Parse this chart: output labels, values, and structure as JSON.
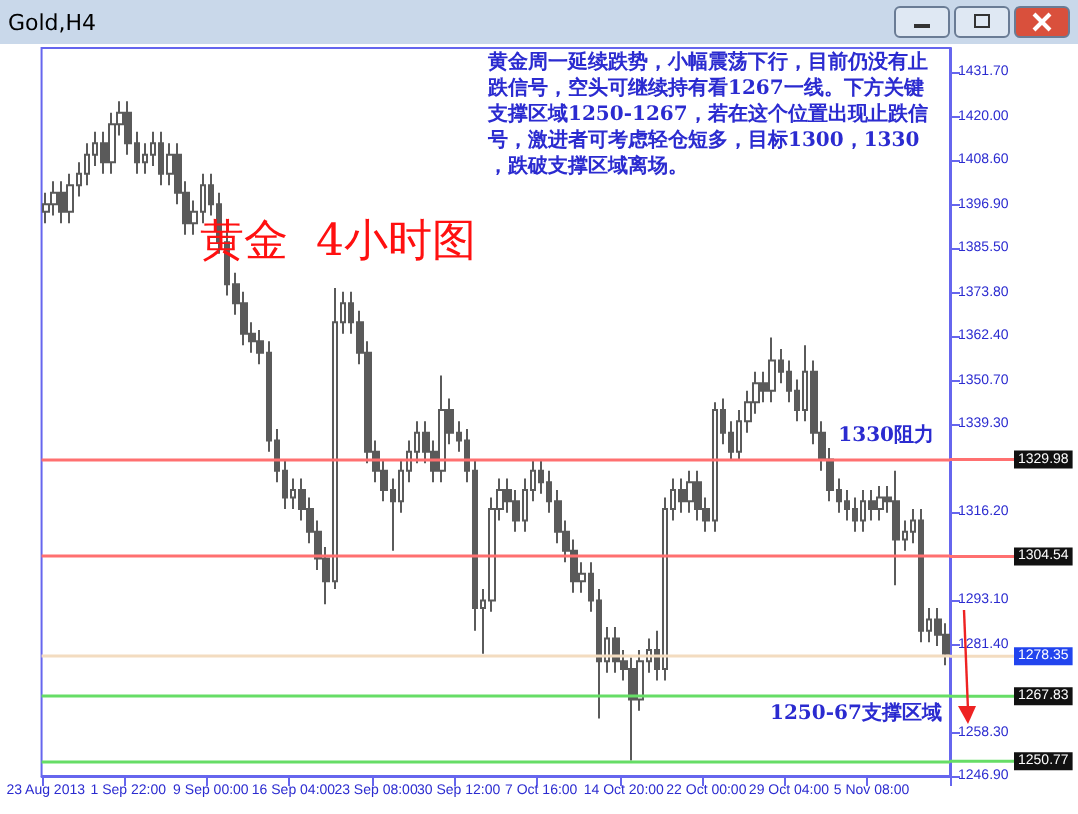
{
  "chart_data": {
    "type": "candlestick",
    "title": "Gold,H4",
    "color": "#5a5a5a",
    "annotations": [
      "黄金周一延续跌势，小幅震荡下行，目前仍没有止跌信号，空头可继续持有看1267一线。下方关键支撑区域1250-1267，若在这个位置出现止跌信号，激进者可考虑轻仓短多，目标1300，1330，跌破支撑区域离场。",
      "黄金  4小时图",
      "1250-67支撑区域",
      {
        "text": "1330阻力",
        "y": 1329.98
      }
    ],
    "categories": [
      "23 Aug 2013",
      null,
      null,
      null,
      null,
      null,
      null,
      null,
      null,
      null,
      "1 Sep 22:00",
      null,
      null,
      null,
      null,
      null,
      null,
      null,
      null,
      null,
      "9 Sep 00:00",
      null,
      null,
      null,
      null,
      null,
      null,
      null,
      null,
      null,
      "16 Sep 04:00",
      null,
      null,
      null,
      null,
      null,
      null,
      null,
      null,
      null,
      "23 Sep 08:00",
      null,
      null,
      null,
      null,
      null,
      null,
      null,
      null,
      null,
      "30 Sep 12:00",
      null,
      null,
      null,
      null,
      null,
      null,
      null,
      null,
      null,
      "7 Oct 16:00",
      null,
      null,
      null,
      null,
      null,
      null,
      null,
      null,
      null,
      "14 Oct 20:00",
      null,
      null,
      null,
      null,
      null,
      null,
      null,
      null,
      null,
      "22 Oct 00:00",
      null,
      null,
      null,
      null,
      null,
      null,
      null,
      null,
      null,
      "29 Oct 04:00",
      null,
      null,
      null,
      null,
      null,
      null,
      null,
      null,
      null,
      "5 Nov 08:00",
      null,
      null,
      null,
      null,
      null,
      null,
      null,
      null,
      null
    ],
    "ohlc": [
      [
        1395,
        1400,
        1392,
        1397
      ],
      [
        1397,
        1403,
        1394,
        1400
      ],
      [
        1400,
        1403,
        1392,
        1395
      ],
      [
        1395,
        1405,
        1392,
        1402
      ],
      [
        1402,
        1408,
        1399,
        1405
      ],
      [
        1405,
        1413,
        1402,
        1410
      ],
      [
        1410,
        1416,
        1407,
        1413
      ],
      [
        1413,
        1416,
        1405,
        1408
      ],
      [
        1408,
        1421,
        1405,
        1418
      ],
      [
        1418,
        1424,
        1415,
        1421
      ],
      [
        1421,
        1424,
        1410,
        1413
      ],
      [
        1413,
        1416,
        1405,
        1408
      ],
      [
        1408,
        1413,
        1405,
        1410
      ],
      [
        1410,
        1416,
        1407,
        1413
      ],
      [
        1413,
        1416,
        1402,
        1405
      ],
      [
        1405,
        1413,
        1402,
        1410
      ],
      [
        1410,
        1413,
        1397,
        1400
      ],
      [
        1400,
        1403,
        1389,
        1392
      ],
      [
        1392,
        1398,
        1389,
        1395
      ],
      [
        1395,
        1405,
        1392,
        1402
      ],
      [
        1402,
        1405,
        1394,
        1397
      ],
      [
        1397,
        1400,
        1384,
        1387
      ],
      [
        1387,
        1390,
        1373,
        1376
      ],
      [
        1376,
        1379,
        1368,
        1371
      ],
      [
        1371,
        1374,
        1360,
        1363
      ],
      [
        1363,
        1366,
        1358,
        1361
      ],
      [
        1361,
        1364,
        1355,
        1358
      ],
      [
        1358,
        1361,
        1332,
        1335
      ],
      [
        1335,
        1338,
        1324,
        1327
      ],
      [
        1327,
        1330,
        1317,
        1320
      ],
      [
        1320,
        1325,
        1317,
        1322
      ],
      [
        1322,
        1325,
        1314,
        1317
      ],
      [
        1317,
        1320,
        1308,
        1311
      ],
      [
        1311,
        1314,
        1301,
        1304
      ],
      [
        1304,
        1307,
        1292,
        1298
      ],
      [
        1298,
        1375,
        1296,
        1366
      ],
      [
        1366,
        1374,
        1363,
        1371
      ],
      [
        1371,
        1374,
        1363,
        1366
      ],
      [
        1366,
        1369,
        1355,
        1358
      ],
      [
        1358,
        1361,
        1329,
        1332
      ],
      [
        1332,
        1335,
        1324,
        1327
      ],
      [
        1327,
        1330,
        1319,
        1322
      ],
      [
        1322,
        1325,
        1306,
        1319
      ],
      [
        1319,
        1330,
        1316,
        1327
      ],
      [
        1327,
        1335,
        1324,
        1332
      ],
      [
        1332,
        1340,
        1329,
        1337
      ],
      [
        1337,
        1340,
        1329,
        1332
      ],
      [
        1332,
        1335,
        1324,
        1327
      ],
      [
        1327,
        1352,
        1324,
        1343
      ],
      [
        1343,
        1346,
        1334,
        1337
      ],
      [
        1337,
        1340,
        1332,
        1335
      ],
      [
        1335,
        1338,
        1324,
        1327
      ],
      [
        1327,
        1330,
        1285,
        1291
      ],
      [
        1291,
        1296,
        1279,
        1293
      ],
      [
        1293,
        1320,
        1290,
        1317
      ],
      [
        1317,
        1325,
        1314,
        1322
      ],
      [
        1322,
        1325,
        1316,
        1319
      ],
      [
        1319,
        1322,
        1311,
        1314
      ],
      [
        1314,
        1325,
        1311,
        1322
      ],
      [
        1322,
        1330,
        1319,
        1327
      ],
      [
        1327,
        1330,
        1321,
        1324
      ],
      [
        1324,
        1327,
        1316,
        1319
      ],
      [
        1319,
        1322,
        1308,
        1311
      ],
      [
        1311,
        1314,
        1303,
        1306
      ],
      [
        1306,
        1309,
        1295,
        1298
      ],
      [
        1298,
        1303,
        1295,
        1300
      ],
      [
        1300,
        1303,
        1290,
        1293
      ],
      [
        1293,
        1296,
        1262,
        1277
      ],
      [
        1277,
        1286,
        1274,
        1283
      ],
      [
        1283,
        1286,
        1274,
        1277
      ],
      [
        1277,
        1280,
        1272,
        1275
      ],
      [
        1275,
        1278,
        1251,
        1267
      ],
      [
        1267,
        1280,
        1264,
        1277
      ],
      [
        1277,
        1283,
        1274,
        1280
      ],
      [
        1280,
        1285,
        1272,
        1275
      ],
      [
        1275,
        1320,
        1272,
        1317
      ],
      [
        1317,
        1325,
        1314,
        1322
      ],
      [
        1322,
        1325,
        1316,
        1319
      ],
      [
        1319,
        1327,
        1316,
        1324
      ],
      [
        1324,
        1327,
        1314,
        1317
      ],
      [
        1317,
        1320,
        1311,
        1314
      ],
      [
        1314,
        1345,
        1311,
        1343
      ],
      [
        1343,
        1346,
        1334,
        1337
      ],
      [
        1337,
        1340,
        1330,
        1332
      ],
      [
        1332,
        1343,
        1330,
        1340
      ],
      [
        1340,
        1348,
        1337,
        1345
      ],
      [
        1345,
        1353,
        1342,
        1350
      ],
      [
        1350,
        1353,
        1345,
        1348
      ],
      [
        1348,
        1362,
        1345,
        1356
      ],
      [
        1356,
        1359,
        1350,
        1353
      ],
      [
        1353,
        1356,
        1345,
        1348
      ],
      [
        1348,
        1351,
        1340,
        1343
      ],
      [
        1343,
        1360,
        1340,
        1353
      ],
      [
        1353,
        1356,
        1334,
        1337
      ],
      [
        1337,
        1340,
        1327,
        1330
      ],
      [
        1330,
        1333,
        1319,
        1322
      ],
      [
        1322,
        1325,
        1316,
        1319
      ],
      [
        1319,
        1322,
        1314,
        1317
      ],
      [
        1317,
        1320,
        1311,
        1314
      ],
      [
        1314,
        1322,
        1311,
        1319
      ],
      [
        1319,
        1322,
        1314,
        1317
      ],
      [
        1317,
        1323,
        1314,
        1320
      ],
      [
        1320,
        1323,
        1316,
        1319
      ],
      [
        1319,
        1327,
        1297,
        1309
      ],
      [
        1309,
        1314,
        1306,
        1311
      ],
      [
        1311,
        1317,
        1308,
        1314
      ],
      [
        1314,
        1317,
        1282,
        1285
      ],
      [
        1285,
        1291,
        1282,
        1288
      ],
      [
        1288,
        1291,
        1281,
        1284
      ],
      [
        1284,
        1287,
        1276,
        1279
      ]
    ],
    "ylim": [
      1246.9,
      1438
    ],
    "yticks": [
      {
        "value": 1431.7,
        "label": "1431.70"
      },
      {
        "value": 1420,
        "label": "1420.00"
      },
      {
        "value": 1408.6,
        "label": "1408.60"
      },
      {
        "value": 1396.9,
        "label": "1396.90"
      },
      {
        "value": 1385.5,
        "label": "1385.50"
      },
      {
        "value": 1373.8,
        "label": "1373.80"
      },
      {
        "value": 1362.4,
        "label": "1362.40"
      },
      {
        "value": 1350.7,
        "label": "1350.70"
      },
      {
        "value": 1339.3,
        "label": "1339.30"
      },
      {
        "value": 1316.2,
        "label": "1316.20"
      },
      {
        "value": 1293.1,
        "label": "1293.10"
      },
      {
        "value": 1281.4,
        "label": "1281.40"
      },
      {
        "value": 1258.3,
        "label": "1258.30"
      },
      {
        "value": 1246.9,
        "label": "1246.90"
      }
    ],
    "ref_lines": [
      {
        "axis": "y",
        "value": 1329.98,
        "label": "1329.98",
        "color": "#ff7070"
      },
      {
        "axis": "y",
        "value": 1304.54,
        "label": "1304.54",
        "color": "#ff7070"
      },
      {
        "axis": "y",
        "value": 1278.35,
        "label": "1278.35",
        "color": "#f3dcc0"
      },
      {
        "axis": "y",
        "value": 1267.83,
        "label": "1267.83",
        "color": "#66dd66"
      },
      {
        "axis": "y",
        "value": 1250.77,
        "label": "1250.77",
        "color": "#66dd66"
      }
    ],
    "grid": false
  }
}
